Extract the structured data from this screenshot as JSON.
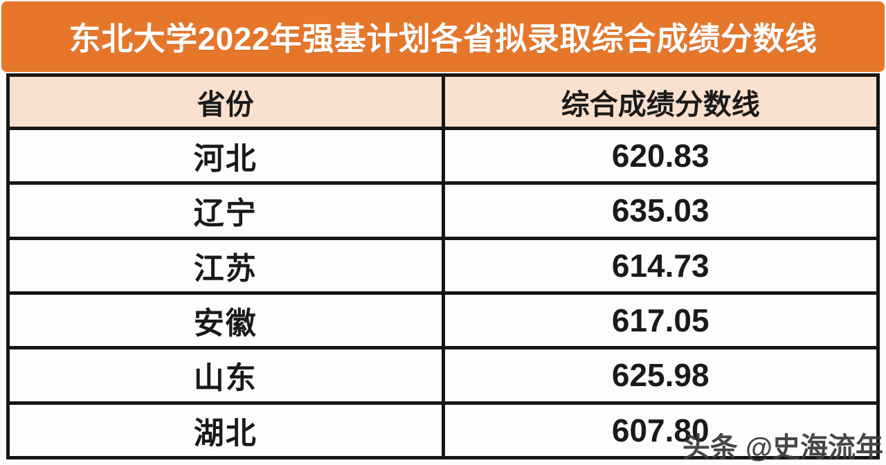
{
  "title": "东北大学2022年强基计划各省拟录取综合成绩分数线",
  "table": {
    "headers": {
      "province": "省份",
      "score": "综合成绩分数线"
    },
    "rows": [
      {
        "province": "河北",
        "score": "620.83"
      },
      {
        "province": "辽宁",
        "score": "635.03"
      },
      {
        "province": "江苏",
        "score": "614.73"
      },
      {
        "province": "安徽",
        "score": "617.05"
      },
      {
        "province": "山东",
        "score": "625.98"
      },
      {
        "province": "湖北",
        "score": "607.80"
      }
    ]
  },
  "watermark": "头条 @史海流年",
  "colors": {
    "banner_orange": "#E6762A",
    "header_peach": "#FAE0CE",
    "border_black": "#151515",
    "cell_white": "#FDFDFD",
    "title_text": "#FFFFFF",
    "body_text": "#1A1A1A",
    "watermark_gray": "#3D3D3D"
  },
  "chart_data": {
    "type": "table",
    "title": "东北大学2022年强基计划各省拟录取综合成绩分数线",
    "columns": [
      "省份",
      "综合成绩分数线"
    ],
    "rows": [
      [
        "河北",
        620.83
      ],
      [
        "辽宁",
        635.03
      ],
      [
        "江苏",
        614.73
      ],
      [
        "安徽",
        617.05
      ],
      [
        "山东",
        625.98
      ],
      [
        "湖北",
        607.8
      ]
    ],
    "layout_hints": {
      "title_style": "white bold text on orange banner",
      "header_style": "black bold text on light peach background",
      "grid": "thick black borders, 2 equal columns, all cells centered"
    }
  }
}
